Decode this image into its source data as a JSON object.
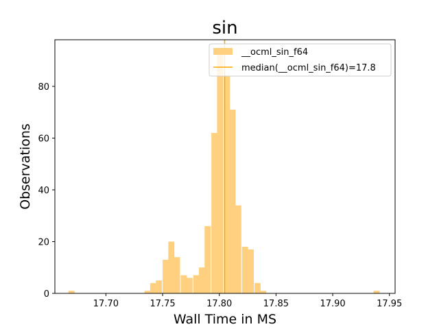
{
  "chart_data": {
    "type": "bar",
    "title": "sin",
    "xlabel": "Wall Time in MS",
    "ylabel": "Observations",
    "xlim": [
      17.655,
      17.955
    ],
    "ylim": [
      0,
      98
    ],
    "xticks": [
      17.7,
      17.75,
      17.8,
      17.85,
      17.9,
      17.95
    ],
    "xtick_labels": [
      "17.70",
      "17.75",
      "17.80",
      "17.85",
      "17.90",
      "17.95"
    ],
    "yticks": [
      0,
      20,
      40,
      60,
      80
    ],
    "ytick_labels": [
      "0",
      "20",
      "40",
      "60",
      "80"
    ],
    "bin_width": 0.0054,
    "bins": [
      {
        "x0": 17.667,
        "value": 1
      },
      {
        "x0": 17.734,
        "value": 1
      },
      {
        "x0": 17.739,
        "value": 4
      },
      {
        "x0": 17.744,
        "value": 5
      },
      {
        "x0": 17.75,
        "value": 13
      },
      {
        "x0": 17.755,
        "value": 20
      },
      {
        "x0": 17.76,
        "value": 14
      },
      {
        "x0": 17.766,
        "value": 7
      },
      {
        "x0": 17.771,
        "value": 6
      },
      {
        "x0": 17.777,
        "value": 7
      },
      {
        "x0": 17.782,
        "value": 10
      },
      {
        "x0": 17.787,
        "value": 26
      },
      {
        "x0": 17.793,
        "value": 62
      },
      {
        "x0": 17.798,
        "value": 95
      },
      {
        "x0": 17.804,
        "value": 84
      },
      {
        "x0": 17.809,
        "value": 71
      },
      {
        "x0": 17.814,
        "value": 34
      },
      {
        "x0": 17.82,
        "value": 18
      },
      {
        "x0": 17.825,
        "value": 17
      },
      {
        "x0": 17.831,
        "value": 4
      },
      {
        "x0": 17.836,
        "value": 1
      },
      {
        "x0": 17.936,
        "value": 1
      }
    ],
    "median": 17.8047,
    "series": [
      {
        "name": "__ocml_sin_f64",
        "color": "#ffd080"
      },
      {
        "name": "median(__ocml_sin_f64)=17.8",
        "color": "#ffa500"
      }
    ],
    "legend_position": "upper right",
    "grid": false
  }
}
